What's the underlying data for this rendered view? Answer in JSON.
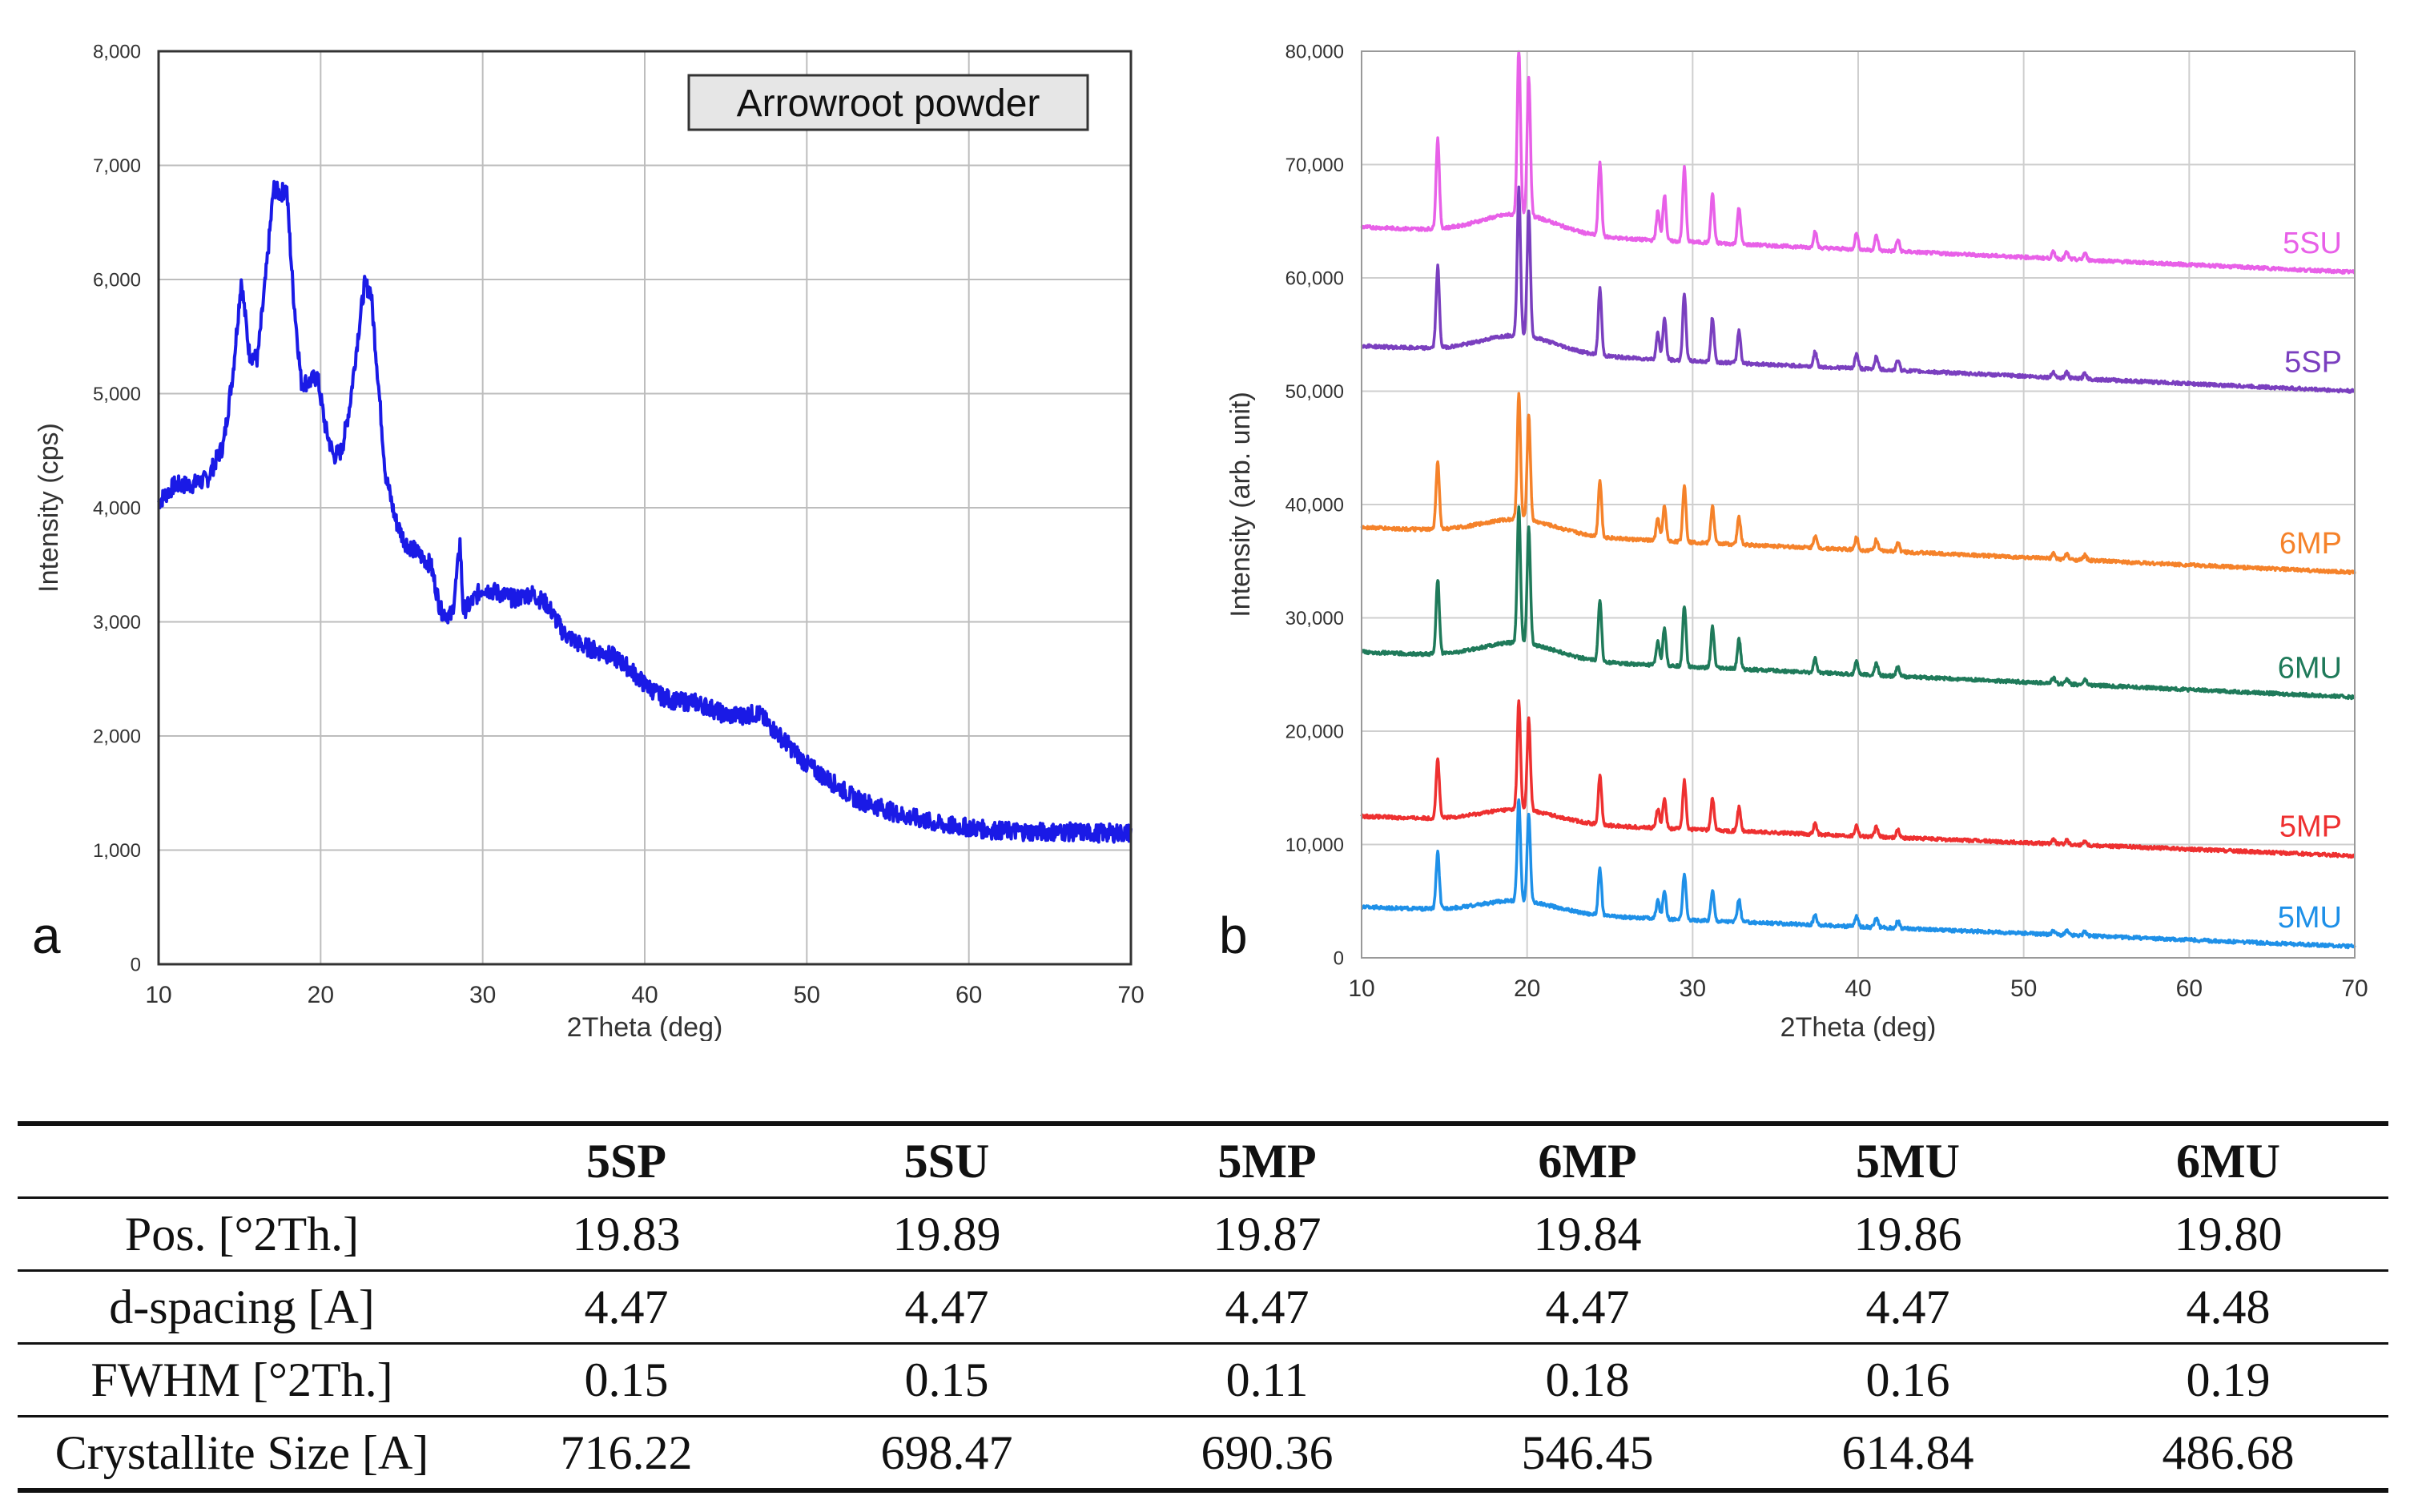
{
  "chart_data": [
    {
      "type": "line",
      "panel": "a",
      "title": "",
      "annotation": "Arrowroot powder",
      "xlabel": "2Theta (deg)",
      "ylabel": "Intensity (cps)",
      "xlim": [
        10,
        70
      ],
      "ylim": [
        0,
        8000
      ],
      "xticks": [
        "10",
        "20",
        "30",
        "40",
        "50",
        "60",
        "70"
      ],
      "yticks": [
        "0",
        "1,000",
        "2,000",
        "3,000",
        "4,000",
        "5,000",
        "6,000",
        "7,000",
        "8,000"
      ],
      "grid": true,
      "series": [
        {
          "name": "Arrowroot powder",
          "color": "#1a1ae6",
          "x": [
            10,
            11,
            12,
            13,
            14,
            14.6,
            15.1,
            15.6,
            16.1,
            16.6,
            17.1,
            17.5,
            17.9,
            18.3,
            18.8,
            19.3,
            19.8,
            20.3,
            20.8,
            21.3,
            21.8,
            22.3,
            22.7,
            23.1,
            23.5,
            24,
            24.6,
            25.2,
            26,
            26.8,
            27.4,
            28.1,
            28.4,
            28.6,
            28.8,
            29.2,
            30,
            31,
            32,
            33,
            34,
            35,
            36,
            37,
            38,
            39,
            40,
            41,
            42,
            43,
            44,
            45,
            46,
            47,
            48,
            49,
            50,
            51,
            52,
            53,
            54,
            55,
            56,
            57,
            58,
            59,
            60,
            61,
            62,
            64,
            66,
            68,
            70
          ],
          "y": [
            4050,
            4200,
            4200,
            4250,
            4550,
            5200,
            6000,
            5350,
            5300,
            6000,
            6800,
            6750,
            6800,
            5900,
            5100,
            5100,
            5150,
            4700,
            4450,
            4500,
            4900,
            5500,
            5950,
            5900,
            5200,
            4300,
            3900,
            3700,
            3600,
            3500,
            3100,
            3050,
            3400,
            3700,
            3100,
            3150,
            3300,
            3250,
            3200,
            3250,
            3150,
            2900,
            2800,
            2750,
            2700,
            2600,
            2450,
            2350,
            2300,
            2300,
            2250,
            2180,
            2180,
            2200,
            2050,
            1900,
            1750,
            1650,
            1550,
            1450,
            1400,
            1350,
            1300,
            1270,
            1230,
            1210,
            1200,
            1180,
            1170,
            1160,
            1160,
            1150,
            1150
          ]
        }
      ]
    },
    {
      "type": "line",
      "panel": "b",
      "title": "",
      "xlabel": "2Theta (deg)",
      "ylabel": "Intensity (arb. unit)",
      "xlim": [
        10,
        70
      ],
      "ylim": [
        0,
        80000
      ],
      "xticks": [
        "10",
        "20",
        "30",
        "40",
        "50",
        "60",
        "70"
      ],
      "yticks": [
        "0",
        "10,000",
        "20,000",
        "30,000",
        "40,000",
        "50,000",
        "60,000",
        "70,000",
        "80,000"
      ],
      "grid": true,
      "peaks_2theta": [
        14.6,
        19.5,
        20.1,
        24.4,
        27.9,
        28.3,
        29.5,
        31.2,
        32.8,
        37.4,
        39.9,
        41.1,
        42.4,
        51.8,
        52.6,
        53.7
      ],
      "series": [
        {
          "name": "5SU",
          "color": "#e860e8",
          "baseline_start": 64500,
          "baseline_end": 60500,
          "max": 79000
        },
        {
          "name": "5SP",
          "color": "#7a3fbf",
          "baseline_start": 54000,
          "baseline_end": 50000,
          "max": 67000
        },
        {
          "name": "6MP",
          "color": "#f5822a",
          "baseline_start": 38000,
          "baseline_end": 34000,
          "max": 49000
        },
        {
          "name": "6MU",
          "color": "#1f7a5a",
          "baseline_start": 27000,
          "baseline_end": 23000,
          "max": 39000
        },
        {
          "name": "5MP",
          "color": "#ee3030",
          "baseline_start": 12500,
          "baseline_end": 9000,
          "max": 22000
        },
        {
          "name": "5MU",
          "color": "#1e90e8",
          "baseline_start": 4500,
          "baseline_end": 1000,
          "max": 13500
        }
      ]
    }
  ],
  "table": {
    "columns": [
      "5SP",
      "5SU",
      "5MP",
      "6MP",
      "5MU",
      "6MU"
    ],
    "rows": [
      {
        "label": "Pos. [°2Th.]",
        "values": [
          "19.83",
          "19.89",
          "19.87",
          "19.84",
          "19.86",
          "19.80"
        ]
      },
      {
        "label": "d-spacing [A]",
        "values": [
          "4.47",
          "4.47",
          "4.47",
          "4.47",
          "4.47",
          "4.48"
        ]
      },
      {
        "label": "FWHM [°2Th.]",
        "values": [
          "0.15",
          "0.15",
          "0.11",
          "0.18",
          "0.16",
          "0.19"
        ]
      },
      {
        "label": "Crystallite Size [A]",
        "values": [
          "716.22",
          "698.47",
          "690.36",
          "546.45",
          "614.84",
          "486.68"
        ]
      }
    ]
  }
}
